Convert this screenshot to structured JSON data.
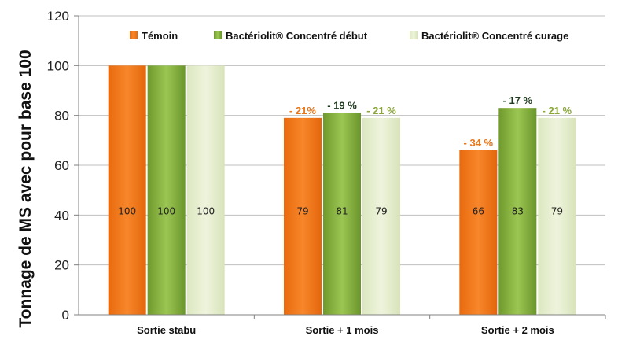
{
  "chart_data": {
    "type": "bar",
    "ylabel": "Tonnage de MS avec pour base 100",
    "ylim": [
      0,
      120
    ],
    "yticks": [
      0,
      20,
      40,
      60,
      80,
      100,
      120
    ],
    "grid": true,
    "legend_position": "top",
    "categories": [
      "Sortie stabu",
      "Sortie + 1 mois",
      "Sortie + 2 mois"
    ],
    "series": [
      {
        "name": "Témoin",
        "color": "#F07A1E",
        "values": [
          100,
          79,
          66
        ],
        "value_labels": [
          "100",
          "79",
          "66"
        ],
        "percent_labels": [
          "",
          "- 21%",
          "- 34 %"
        ],
        "percent_color": "#E8761A"
      },
      {
        "name": "Bactériolit® Concentré début",
        "color": "#7FA83A",
        "values": [
          100,
          81,
          83
        ],
        "value_labels": [
          "100",
          "81",
          "83"
        ],
        "percent_labels": [
          "",
          "- 19 %",
          "- 17 %"
        ],
        "percent_color": "#1E3A1E"
      },
      {
        "name": "Bactériolit® Concentré curage",
        "color": "#E4EDCC",
        "values": [
          100,
          79,
          79
        ],
        "value_labels": [
          "100",
          "79",
          "79"
        ],
        "percent_labels": [
          "",
          "- 21 %",
          "- 21 %"
        ],
        "percent_color": "#8AA63A"
      }
    ]
  }
}
